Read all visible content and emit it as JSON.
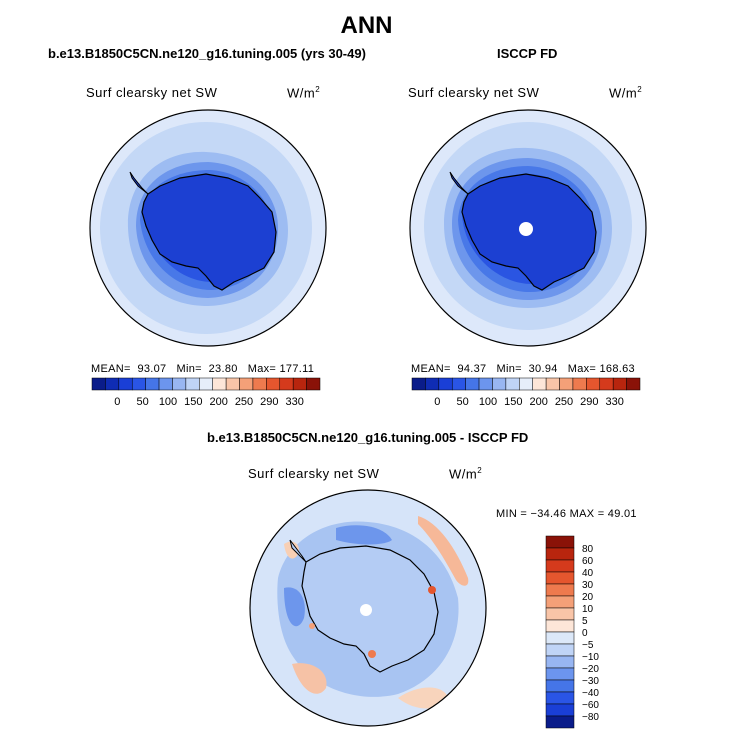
{
  "header": {
    "title": "ANN"
  },
  "panels": [
    {
      "case_title": "b.e13.B1850C5CN.ne120_g16.tuning.005 (yrs 30-49)",
      "variable": "Surf clearsky net SW",
      "units_base": "W/m",
      "units_exp": "2",
      "stats": {
        "mean_label": "MEAN=",
        "mean": "93.07",
        "min_label": "Min=",
        "min": "23.80",
        "max_label": "Max=",
        "max": "177.11"
      }
    },
    {
      "case_title": "ISCCP FD",
      "variable": "Surf clearsky net SW",
      "units_base": "W/m",
      "units_exp": "2",
      "stats": {
        "mean_label": "MEAN=",
        "mean": "94.37",
        "min_label": "Min=",
        "min": "30.94",
        "max_label": "Max=",
        "max": "168.63"
      }
    }
  ],
  "abs_colorbar": {
    "labels": [
      "0",
      "50",
      "100",
      "150",
      "200",
      "250",
      "290",
      "330"
    ],
    "colors": [
      "#0a1c8a",
      "#0f2cb4",
      "#1a3fd6",
      "#2a55e6",
      "#4575e8",
      "#6c95ee",
      "#98b6f2",
      "#c0d4f6",
      "#e6eefa",
      "#fde6d8",
      "#f9c5a8",
      "#f4a078",
      "#ee7a4e",
      "#e5562e",
      "#d53a1c",
      "#b8250e",
      "#8a1208"
    ]
  },
  "diff": {
    "title": "b.e13.B1850C5CN.ne120_g16.tuning.005 - ISCCP FD",
    "variable": "Surf clearsky net SW",
    "units_base": "W/m",
    "units_exp": "2",
    "minmax": "MIN = −34.46 MAX =  49.01",
    "colorbar": {
      "labels": [
        "80",
        "60",
        "40",
        "30",
        "20",
        "10",
        "5",
        "0",
        "−5",
        "−10",
        "−20",
        "−30",
        "−40",
        "−60",
        "−80"
      ],
      "colors": [
        "#8a1208",
        "#b8250e",
        "#d53a1c",
        "#e5562e",
        "#ee7a4e",
        "#f4a078",
        "#f9c5a8",
        "#fde6d8",
        "#dce8f8",
        "#c0d4f6",
        "#98b6f2",
        "#6c95ee",
        "#4575e8",
        "#2a55e6",
        "#1a3fd6",
        "#0a1c8a"
      ]
    }
  },
  "map_colors": {
    "ring1": "#c4d8f6",
    "ring2": "#9dbcf2",
    "ring3": "#6d96ec",
    "ring4": "#4878e8",
    "ring5": "#2a55e2",
    "land": "#1c40d2",
    "coast": "#000000",
    "diff_bg": "#d6e4f9",
    "diff_mid": "#a8c4f2",
    "diff_land": "#b4ccf4"
  }
}
